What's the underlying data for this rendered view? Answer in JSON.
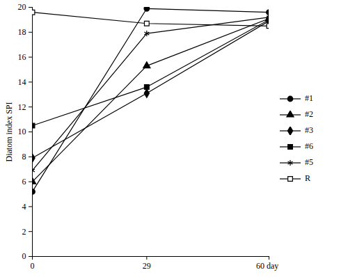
{
  "chart_data": {
    "type": "line",
    "y_label": "Diatom index SPI",
    "x": [
      0,
      29,
      60
    ],
    "xlim": [
      0,
      60
    ],
    "xticks": [
      0,
      29,
      {
        "value": 60,
        "label": "60 days"
      }
    ],
    "ylim": [
      0,
      20
    ],
    "yticks": [
      0,
      2,
      4,
      6,
      8,
      10,
      12,
      14,
      16,
      18,
      20
    ],
    "grid": false,
    "legend": "right",
    "series": [
      {
        "name": "#1",
        "color": "#000000",
        "marker": "circle",
        "values": [
          5.2,
          19.9,
          19.6
        ]
      },
      {
        "name": "#2",
        "color": "#000000",
        "marker": "triangle",
        "values": [
          6.0,
          15.3,
          19.1
        ]
      },
      {
        "name": "#3",
        "color": "#000000",
        "marker": "diamond",
        "values": [
          7.9,
          13.1,
          18.9
        ]
      },
      {
        "name": "#6",
        "color": "#000000",
        "marker": "square",
        "values": [
          10.5,
          13.6,
          19.0
        ]
      },
      {
        "name": "#5",
        "color": "#000000",
        "marker": "asterisk",
        "values": [
          6.9,
          17.9,
          19.2
        ]
      },
      {
        "name": "R",
        "color": "#000000",
        "marker": "square-open",
        "values": [
          19.6,
          18.7,
          18.5
        ]
      }
    ]
  }
}
